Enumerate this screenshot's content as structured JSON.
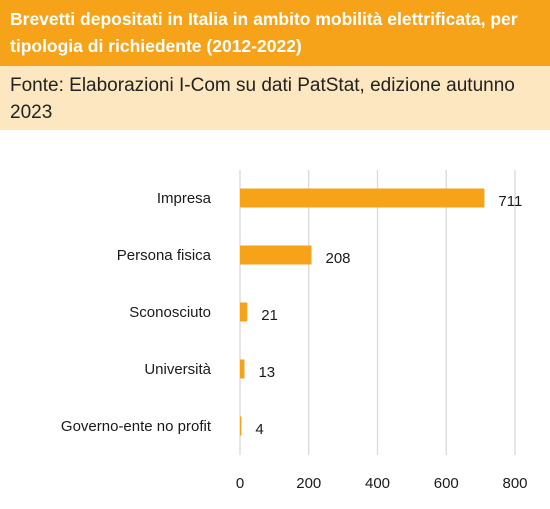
{
  "header": {
    "title": "Brevetti depositati in Italia in ambito mobilità elettrificata, per tipologia di richiedente (2012-2022)",
    "source": "Fonte: Elaborazioni I-Com su dati PatStat, edizione autunno 2023"
  },
  "colors": {
    "bar": "#f6a31a",
    "title_band": "#f6a31a",
    "source_band": "#fde7c0",
    "grid": "#d9d9d9"
  },
  "chart_data": {
    "type": "bar",
    "orientation": "horizontal",
    "categories": [
      "Impresa",
      "Persona fisica",
      "Sconosciuto",
      "Università",
      "Governo-ente no profit"
    ],
    "values": [
      711,
      208,
      21,
      13,
      4
    ],
    "xlim": [
      0,
      800
    ],
    "xticks": [
      0,
      200,
      400,
      600,
      800
    ],
    "grid": true,
    "legend": "none"
  }
}
